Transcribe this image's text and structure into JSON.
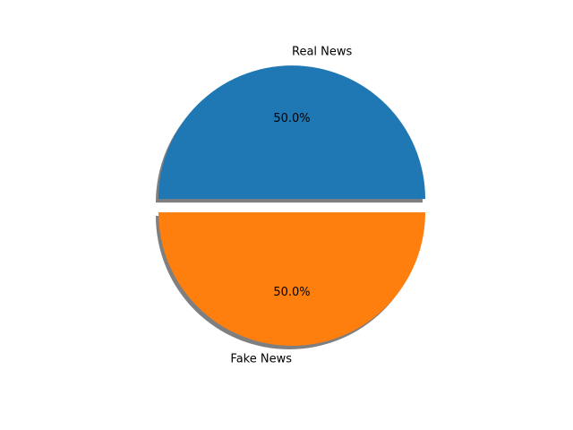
{
  "chart_data": {
    "type": "pie",
    "categories": [
      "Real News",
      "Fake News"
    ],
    "values": [
      50.0,
      50.0
    ],
    "percent_labels": [
      "50.0%",
      "50.0%"
    ],
    "colors": [
      "#1f77b4",
      "#ff7f0e"
    ],
    "explode": [
      0.1,
      0.0
    ],
    "shadow": true,
    "title": ""
  }
}
